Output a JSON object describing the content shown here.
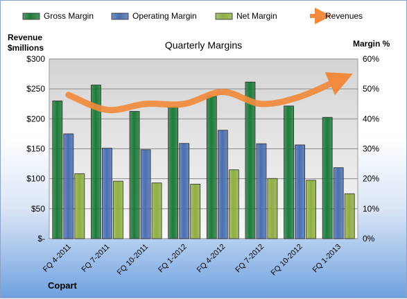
{
  "chart_data": {
    "type": "bar",
    "title": "Quarterly Margins",
    "source_label": "Copart",
    "y_left_label": [
      "Revenue",
      "$millions"
    ],
    "y_right_label": "Margin %",
    "categories": [
      "FQ 4-2011",
      "FQ 7-2011",
      "FQ 10-2011",
      "FQ 1-2012",
      "FQ 4-2012",
      "FQ 7-2012",
      "FQ 10-2012",
      "FQ 1-2013"
    ],
    "y_left_ticks": [
      "$-",
      "$50",
      "$100",
      "$150",
      "$200",
      "$250",
      "$300"
    ],
    "y_right_ticks": [
      "0%",
      "10%",
      "20%",
      "30%",
      "40%",
      "50%",
      "60%"
    ],
    "ylim_left": [
      0,
      300
    ],
    "ylim_right": [
      0,
      60
    ],
    "series": [
      {
        "name": "Gross Margin",
        "axis": "right",
        "color": "#1e7a3a",
        "values": [
          46,
          51.3,
          42.5,
          44,
          47.5,
          52.3,
          44.3,
          40.5
        ]
      },
      {
        "name": "Operating Margin",
        "axis": "right",
        "color": "#4a6fb0",
        "values": [
          35,
          30.2,
          29.7,
          31.8,
          36.2,
          31.7,
          31.3,
          23.7
        ]
      },
      {
        "name": "Net Margin",
        "axis": "right",
        "color": "#8fae44",
        "values": [
          21.7,
          19.2,
          18.6,
          18.2,
          23,
          20.1,
          19.5,
          15
        ]
      },
      {
        "name": "Revenues",
        "axis": "left",
        "color": "#f08a3c",
        "type": "line",
        "values": [
          240,
          215,
          225,
          225,
          245,
          225,
          237,
          265
        ]
      }
    ],
    "grid": true,
    "legend_position": "top"
  }
}
